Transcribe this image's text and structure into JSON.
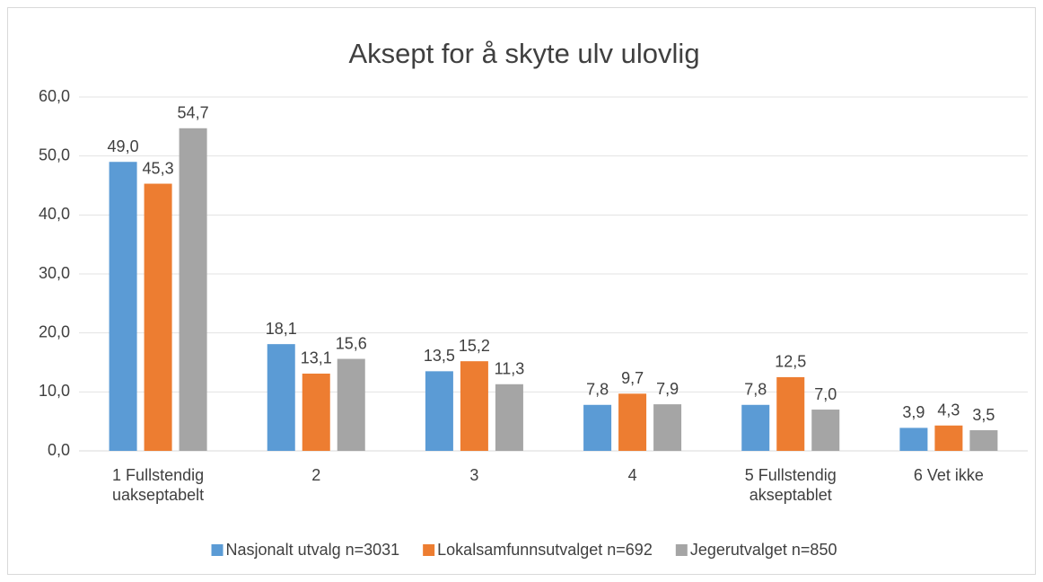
{
  "chart_data": {
    "type": "bar",
    "title": "Aksept for å skyte ulv ulovlig",
    "categories": [
      "1 Fullstendig uakseptabelt",
      "2",
      "3",
      "4",
      "5 Fullstendig akseptablet",
      "6 Vet ikke"
    ],
    "series": [
      {
        "name": "Nasjonalt utvalg n=3031",
        "color": "#5b9bd5",
        "values": [
          49.0,
          18.1,
          13.5,
          7.8,
          7.8,
          3.9
        ],
        "value_labels": [
          "49,0",
          "18,1",
          "13,5",
          "7,8",
          "7,8",
          "3,9"
        ]
      },
      {
        "name": "Lokalsamfunnsutvalget n=692",
        "color": "#ed7d31",
        "values": [
          45.3,
          13.1,
          15.2,
          9.7,
          12.5,
          4.3
        ],
        "value_labels": [
          "45,3",
          "13,1",
          "15,2",
          "9,7",
          "12,5",
          "4,3"
        ]
      },
      {
        "name": "Jegerutvalget n=850",
        "color": "#a5a5a5",
        "values": [
          54.7,
          15.6,
          11.3,
          7.9,
          7.0,
          3.5
        ],
        "value_labels": [
          "54,7",
          "15,6",
          "11,3",
          "7,9",
          "7,0",
          "3,5"
        ]
      }
    ],
    "ylim": [
      0,
      60
    ],
    "yticks": [
      {
        "value": 0,
        "label": "0,0"
      },
      {
        "value": 10,
        "label": "10,0"
      },
      {
        "value": 20,
        "label": "20,0"
      },
      {
        "value": 30,
        "label": "30,0"
      },
      {
        "value": 40,
        "label": "40,0"
      },
      {
        "value": 50,
        "label": "50,0"
      },
      {
        "value": 60,
        "label": "60,0"
      }
    ],
    "grid": true,
    "legend": "bottom"
  }
}
